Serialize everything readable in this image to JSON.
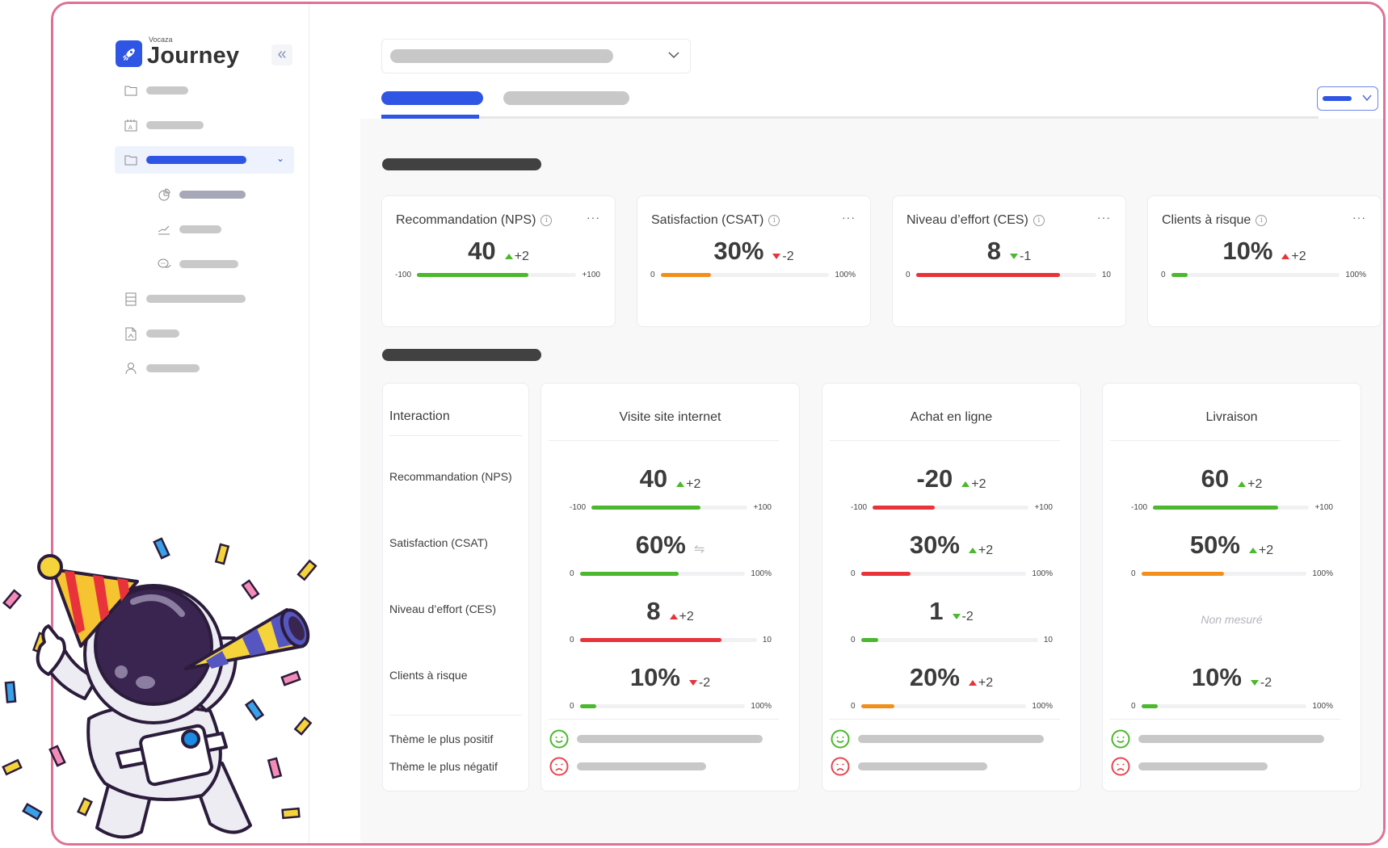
{
  "app": {
    "brand_small": "Vocaza",
    "brand_name": "Journey",
    "collapse_icon": "double-chevron-left"
  },
  "sidebar": {
    "items": [
      {
        "icon": "folder-icon",
        "label": "",
        "active": false
      },
      {
        "icon": "calendar-icon",
        "label": "",
        "active": false
      },
      {
        "icon": "folder-icon",
        "label": "",
        "active": true,
        "expanded": true
      },
      {
        "icon": "pie-chart-icon",
        "label": "",
        "sub": true,
        "highlight": true
      },
      {
        "icon": "line-chart-icon",
        "label": "",
        "sub": true
      },
      {
        "icon": "chat-bubbles-icon",
        "label": "",
        "sub": true
      },
      {
        "icon": "list-icon",
        "label": "",
        "active": false
      },
      {
        "icon": "pdf-file-icon",
        "label": "",
        "active": false
      },
      {
        "icon": "user-icon",
        "label": "",
        "active": false
      }
    ]
  },
  "header": {
    "selector_value": "",
    "tabs": [
      {
        "label": "",
        "active": true
      },
      {
        "label": "",
        "active": false
      }
    ],
    "period_value": ""
  },
  "colors": {
    "accent": "#2f55e4",
    "green": "#4bb82d",
    "orange": "#f28f1c",
    "red": "#e8333b",
    "frame": "#e07095"
  },
  "kpis": [
    {
      "title": "Recommandation (NPS)",
      "value": "40",
      "delta": "+2",
      "delta_dir": "up",
      "delta_color": "green",
      "min_label": "-100",
      "max_label": "+100",
      "min": -100,
      "max": 100,
      "raw": 40,
      "bar_color": "green"
    },
    {
      "title": "Satisfaction (CSAT)",
      "value": "30%",
      "delta": "-2",
      "delta_dir": "down",
      "delta_color": "red",
      "min_label": "0",
      "max_label": "100%",
      "min": 0,
      "max": 100,
      "raw": 30,
      "bar_color": "orange"
    },
    {
      "title": "Niveau d’effort (CES)",
      "value": "8",
      "delta": "-1",
      "delta_dir": "down",
      "delta_color": "green",
      "min_label": "0",
      "max_label": "10",
      "min": 0,
      "max": 10,
      "raw": 8,
      "bar_color": "red"
    },
    {
      "title": "Clients à risque",
      "value": "10%",
      "delta": "+2",
      "delta_dir": "up",
      "delta_color": "red",
      "min_label": "0",
      "max_label": "100%",
      "min": 0,
      "max": 100,
      "raw": 10,
      "bar_color": "green"
    }
  ],
  "table": {
    "header_label": "Interaction",
    "row_labels": [
      "Recommandation (NPS)",
      "Satisfaction (CSAT)",
      "Niveau d’effort (CES)",
      "Clients à risque"
    ],
    "theme_labels": [
      "Thème le plus positif",
      "Thème le plus négatif"
    ],
    "not_measured_label": "Non mesuré",
    "columns": [
      {
        "title": "Visite site internet",
        "metrics": [
          {
            "value": "40",
            "delta": "+2",
            "delta_dir": "up",
            "delta_color": "green",
            "min_label": "-100",
            "max_label": "+100",
            "min": -100,
            "max": 100,
            "raw": 40,
            "bar_color": "green"
          },
          {
            "value": "60%",
            "delta": "",
            "delta_dir": "neutral",
            "delta_color": "gray",
            "min_label": "0",
            "max_label": "100%",
            "min": 0,
            "max": 100,
            "raw": 60,
            "bar_color": "green"
          },
          {
            "value": "8",
            "delta": "+2",
            "delta_dir": "up",
            "delta_color": "red",
            "min_label": "0",
            "max_label": "10",
            "min": 0,
            "max": 10,
            "raw": 8,
            "bar_color": "red"
          },
          {
            "value": "10%",
            "delta": "-2",
            "delta_dir": "down",
            "delta_color": "red",
            "min_label": "0",
            "max_label": "100%",
            "min": 0,
            "max": 100,
            "raw": 10,
            "bar_color": "green"
          }
        ],
        "positive_theme": "",
        "negative_theme": ""
      },
      {
        "title": "Achat en ligne",
        "metrics": [
          {
            "value": "-20",
            "delta": "+2",
            "delta_dir": "up",
            "delta_color": "green",
            "min_label": "-100",
            "max_label": "+100",
            "min": -100,
            "max": 100,
            "raw": -20,
            "bar_color": "red"
          },
          {
            "value": "30%",
            "delta": "+2",
            "delta_dir": "up",
            "delta_color": "green",
            "min_label": "0",
            "max_label": "100%",
            "min": 0,
            "max": 100,
            "raw": 30,
            "bar_color": "red"
          },
          {
            "value": "1",
            "delta": "-2",
            "delta_dir": "down",
            "delta_color": "green",
            "min_label": "0",
            "max_label": "10",
            "min": 0,
            "max": 10,
            "raw": 1,
            "bar_color": "green"
          },
          {
            "value": "20%",
            "delta": "+2",
            "delta_dir": "up",
            "delta_color": "red",
            "min_label": "0",
            "max_label": "100%",
            "min": 0,
            "max": 100,
            "raw": 20,
            "bar_color": "orange"
          }
        ],
        "positive_theme": "",
        "negative_theme": ""
      },
      {
        "title": "Livraison",
        "metrics": [
          {
            "value": "60",
            "delta": "+2",
            "delta_dir": "up",
            "delta_color": "green",
            "min_label": "-100",
            "max_label": "+100",
            "min": -100,
            "max": 100,
            "raw": 60,
            "bar_color": "green"
          },
          {
            "value": "50%",
            "delta": "+2",
            "delta_dir": "up",
            "delta_color": "green",
            "min_label": "0",
            "max_label": "100%",
            "min": 0,
            "max": 100,
            "raw": 50,
            "bar_color": "orange"
          },
          {
            "not_measured": true
          },
          {
            "value": "10%",
            "delta": "-2",
            "delta_dir": "down",
            "delta_color": "green",
            "min_label": "0",
            "max_label": "100%",
            "min": 0,
            "max": 100,
            "raw": 10,
            "bar_color": "green"
          }
        ],
        "positive_theme": "",
        "negative_theme": ""
      }
    ]
  },
  "illustration": {
    "subject": "astronaut-celebrating-with-party-hat-and-horn",
    "decoration": "confetti"
  }
}
